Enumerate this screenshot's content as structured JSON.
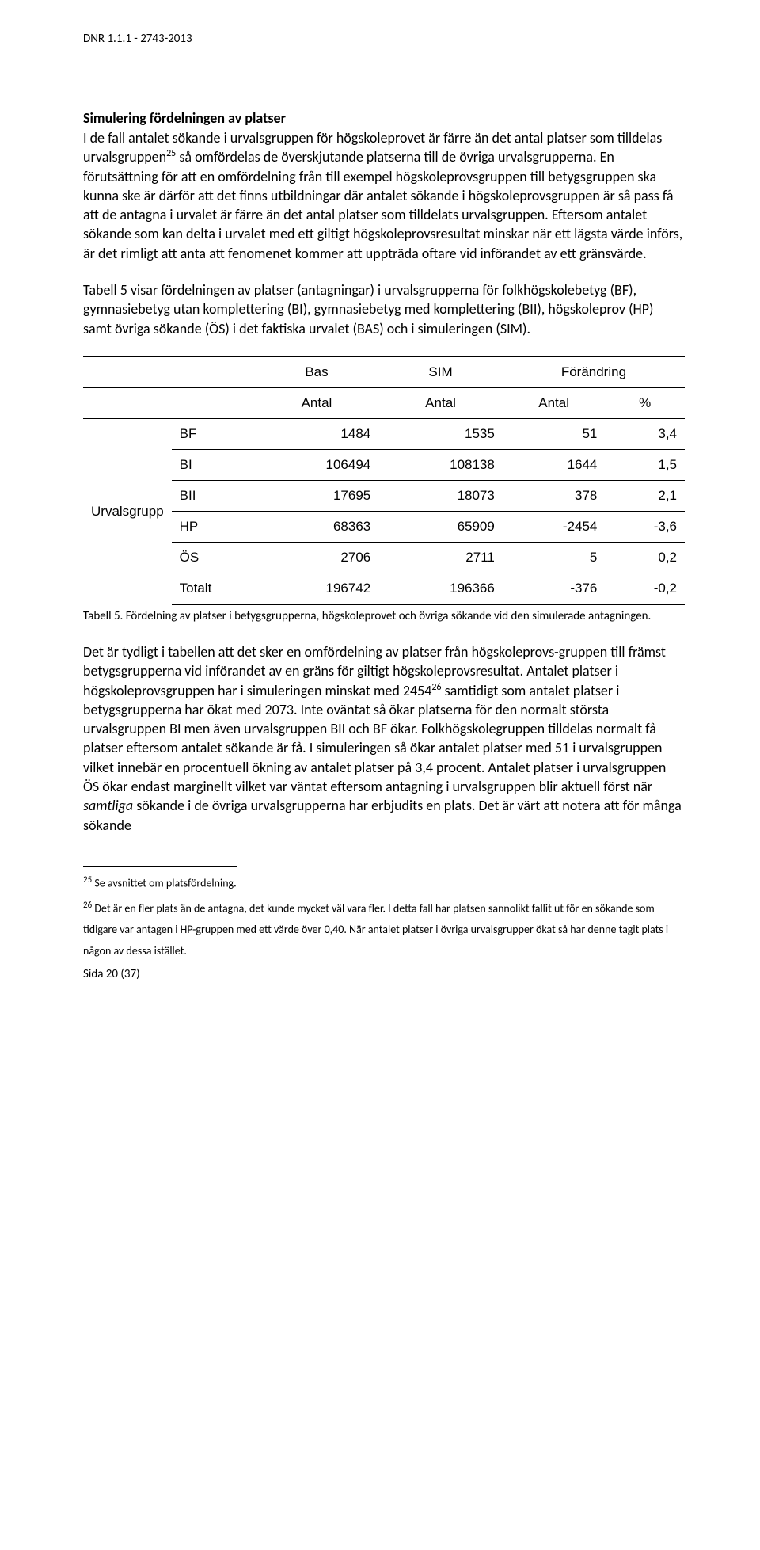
{
  "header": {
    "dnr": "DNR 1.1.1 - 2743-2013"
  },
  "section1": {
    "title": "Simulering fördelningen av platser",
    "p1a": "I de fall antalet sökande i urvalsgruppen för högskoleprovet är färre än det antal platser som tilldelas urvalsgruppen",
    "sup1": "25",
    "p1b": " så omfördelas de överskjutande platserna till de övriga urvalsgrupperna. En förutsättning för att en omfördelning från till exempel högskoleprovsgruppen till betygsgruppen ska kunna ske är därför att det finns utbildningar där antalet sökande i högskoleprovsgruppen är så pass få att de antagna i urvalet är färre än det antal platser som tilldelats urvalsgruppen. Eftersom antalet sökande som kan delta i urvalet med ett giltigt högskoleprovsresultat minskar när ett lägsta värde införs, är det rimligt att anta att fenomenet kommer att uppträda oftare vid införandet av ett gränsvärde."
  },
  "p2": "Tabell 5 visar fördelningen av platser (antagningar) i urvalsgrupperna för folkhögskolebetyg (BF), gymnasiebetyg utan komplettering (BI), gymnasiebetyg med komplettering (BII), högskoleprov (HP) samt övriga sökande (ÖS) i det faktiska urvalet (BAS) och i simuleringen (SIM).",
  "table": {
    "colgroup_label": "Urvalsgrupp",
    "hdrA": {
      "c1": "",
      "c2": "",
      "c3": "Bas",
      "c4": "SIM",
      "c56": "Förändring"
    },
    "hdrB": {
      "c1": "",
      "c2": "",
      "c3": "Antal",
      "c4": "Antal",
      "c5": "Antal",
      "c6": "%"
    },
    "rows": [
      {
        "label": "BF",
        "bas": "1484",
        "sim": "1535",
        "diff": "51",
        "pct": "3,4"
      },
      {
        "label": "BI",
        "bas": "106494",
        "sim": "108138",
        "diff": "1644",
        "pct": "1,5"
      },
      {
        "label": "BII",
        "bas": "17695",
        "sim": "18073",
        "diff": "378",
        "pct": "2,1"
      },
      {
        "label": "HP",
        "bas": "68363",
        "sim": "65909",
        "diff": "-2454",
        "pct": "-3,6"
      },
      {
        "label": "ÖS",
        "bas": "2706",
        "sim": "2711",
        "diff": "5",
        "pct": "0,2"
      },
      {
        "label": "Totalt",
        "bas": "196742",
        "sim": "196366",
        "diff": "-376",
        "pct": "-0,2"
      }
    ]
  },
  "caption": "Tabell 5. Fördelning av platser i betygsgrupperna, högskoleprovet och övriga sökande vid den simulerade antagningen.",
  "p3a": "Det är tydligt i tabellen att det sker en omfördelning av platser från högskoleprovs-gruppen till främst betygsgrupperna vid införandet av en gräns för giltigt högskoleprovsresultat. Antalet platser i högskoleprovsgruppen har i simuleringen minskat med 2454",
  "sup2": "26",
  "p3b": " samtidigt som antalet platser i betygsgrupperna har ökat med 2073.  Inte oväntat så ökar platserna för den normalt största urvalsgruppen BI men även urvalsgruppen BII och BF ökar. Folkhögskolegruppen tilldelas normalt få platser eftersom antalet sökande är få. I simuleringen så ökar antalet platser med 51 i urvalsgruppen vilket innebär en procentuell ökning av antalet platser på 3,4 procent. Antalet platser i urvalsgruppen ÖS ökar endast marginellt vilket var väntat eftersom antagning i urvalsgruppen blir aktuell först när ",
  "p3c": "samtliga",
  "p3d": " sökande i de övriga urvalsgrupperna har erbjudits en plats. Det är värt att notera att för många sökande",
  "footnotes": {
    "f25_sup": "25",
    "f25": " Se avsnittet om platsfördelning.",
    "f26_sup": "26",
    "f26a": " Det är en fler plats än de antagna, det kunde mycket väl vara fler. I detta fall har platsen sannolikt fallit ut för en sökande som tidigare var antagen i HP-gruppen med ett värde över 0,40. När antalet platser i övriga urvalsgrupper ökat så har denne tagit plats i någon av dessa istället."
  },
  "footer": "Sida 20 (37)"
}
